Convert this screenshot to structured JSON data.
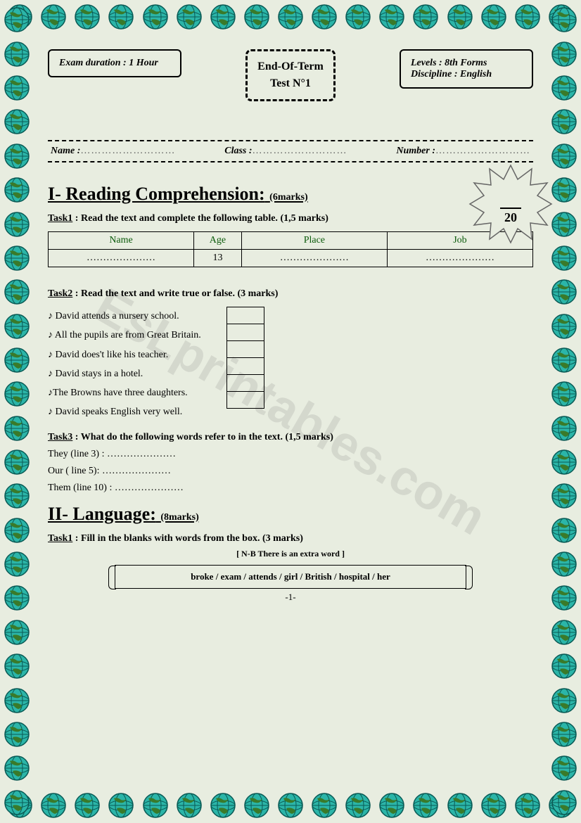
{
  "border": {
    "globe_count_top": 17,
    "globe_count_side": 24
  },
  "header": {
    "left": "Exam duration : 1 Hour",
    "center_l1": "End-Of-Term",
    "center_l2": "Test N°1",
    "right_l1": "Levels : 8th Forms",
    "right_l2": "Discipline : English"
  },
  "nameRow": {
    "name_label": "Name :",
    "class_label": "Class :",
    "number_label": "Number :",
    "dots": "………………………"
  },
  "score": {
    "total": "20"
  },
  "section1": {
    "title": "I- Reading Comprehension:",
    "marks": "(6marks)"
  },
  "task1": {
    "label": "Task1",
    "desc": " : Read the text and complete the following table. ",
    "marks": "(1,5 marks)",
    "cols": [
      "Name",
      "Age",
      "Place",
      "Job"
    ],
    "row": [
      "…………………",
      "13",
      "…………………",
      "…………………"
    ]
  },
  "task2": {
    "label": "Task2",
    "desc": " : Read the text and write true or false. ",
    "marks": "(3 marks)",
    "items": [
      "♪ David attends a nursery school.",
      "♪ All the pupils are from Great Britain.",
      "♪ David does't like his teacher.",
      "♪ David stays in a hotel.",
      "♪The Browns have three daughters.",
      "♪ David speaks English very well."
    ]
  },
  "task3": {
    "label": "Task3",
    "desc": " : What do the following words refer to in the text. ",
    "marks": "(1,5 marks)",
    "refs": [
      "They (line 3) : …………………",
      "Our ( line 5): …………………",
      "Them (line 10) : …………………"
    ]
  },
  "section2": {
    "title": "II- Language:",
    "marks": "(8marks)"
  },
  "lang_task1": {
    "label": "Task1",
    "desc": " : Fill in the blanks with words from the box. ",
    "marks": "(3 marks)",
    "note": "[ N-B   There is an extra word ]",
    "words": "broke  / exam /  attends   / girl  / British /  hospital /   her"
  },
  "pagenum": "-1-",
  "watermark": "EsLprintables.com"
}
